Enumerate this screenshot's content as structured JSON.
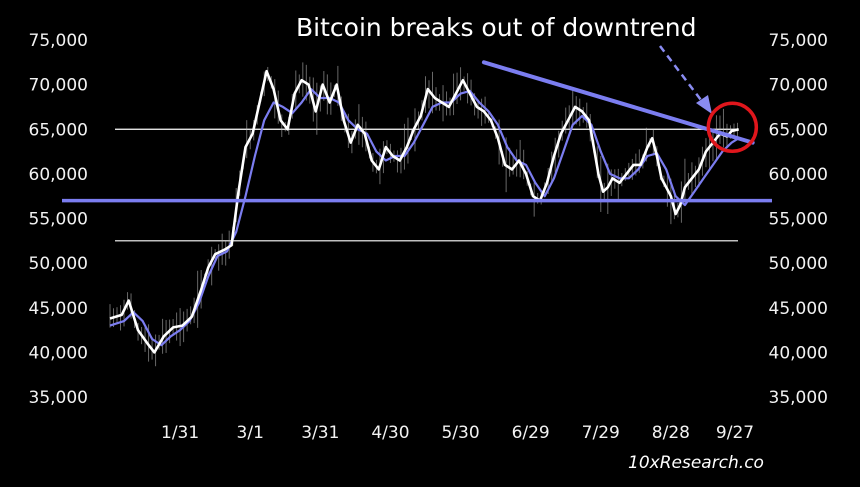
{
  "chart_data": {
    "type": "line",
    "title": "Bitcoin breaks out of downtrend",
    "watermark": "10xResearch.co",
    "xlabel": "",
    "ylabel": "",
    "x_range": [
      0,
      270
    ],
    "ylim": [
      35000,
      75000
    ],
    "y_ticks": [
      35000,
      40000,
      45000,
      50000,
      55000,
      60000,
      65000,
      70000,
      75000
    ],
    "y_tick_labels": [
      "35,000",
      "40,000",
      "45,000",
      "50,000",
      "55,000",
      "60,000",
      "65,000",
      "70,000",
      "75,000"
    ],
    "x_ticks": [
      {
        "x": 30,
        "label": "1/31"
      },
      {
        "x": 60,
        "label": "3/1"
      },
      {
        "x": 90,
        "label": "3/31"
      },
      {
        "x": 120,
        "label": "4/30"
      },
      {
        "x": 150,
        "label": "5/30"
      },
      {
        "x": 180,
        "label": "6/29"
      },
      {
        "x": 210,
        "label": "7/29"
      },
      {
        "x": 240,
        "label": "8/28"
      },
      {
        "x": 270,
        "label": "9/27"
      }
    ],
    "price_series": {
      "color": "#ffffff",
      "points": [
        [
          0,
          43800
        ],
        [
          5,
          44200
        ],
        [
          8,
          45800
        ],
        [
          12,
          42500
        ],
        [
          16,
          41000
        ],
        [
          19,
          40000
        ],
        [
          23,
          41800
        ],
        [
          27,
          42800
        ],
        [
          31,
          43000
        ],
        [
          35,
          44000
        ],
        [
          39,
          47000
        ],
        [
          42,
          49500
        ],
        [
          45,
          51000
        ],
        [
          49,
          51500
        ],
        [
          52,
          52000
        ],
        [
          55,
          58000
        ],
        [
          58,
          63000
        ],
        [
          61,
          64500
        ],
        [
          64,
          68000
        ],
        [
          67,
          71500
        ],
        [
          70,
          69500
        ],
        [
          73,
          66000
        ],
        [
          76,
          65000
        ],
        [
          79,
          69000
        ],
        [
          82,
          70500
        ],
        [
          85,
          70000
        ],
        [
          88,
          67000
        ],
        [
          91,
          70000
        ],
        [
          94,
          68000
        ],
        [
          97,
          70000
        ],
        [
          100,
          66000
        ],
        [
          103,
          63500
        ],
        [
          106,
          65500
        ],
        [
          109,
          64500
        ],
        [
          112,
          61500
        ],
        [
          115,
          60500
        ],
        [
          118,
          63000
        ],
        [
          121,
          62000
        ],
        [
          124,
          61500
        ],
        [
          127,
          63000
        ],
        [
          130,
          65000
        ],
        [
          133,
          66500
        ],
        [
          136,
          69500
        ],
        [
          139,
          68500
        ],
        [
          142,
          68000
        ],
        [
          145,
          67500
        ],
        [
          148,
          69000
        ],
        [
          151,
          70500
        ],
        [
          154,
          69000
        ],
        [
          157,
          67500
        ],
        [
          160,
          67000
        ],
        [
          163,
          66000
        ],
        [
          166,
          64000
        ],
        [
          169,
          61000
        ],
        [
          172,
          60500
        ],
        [
          175,
          61500
        ],
        [
          178,
          60000
        ],
        [
          181,
          57500
        ],
        [
          184,
          57000
        ],
        [
          187,
          59000
        ],
        [
          190,
          62000
        ],
        [
          193,
          64500
        ],
        [
          196,
          66000
        ],
        [
          199,
          67500
        ],
        [
          202,
          67000
        ],
        [
          205,
          66000
        ],
        [
          207,
          63000
        ],
        [
          209,
          60000
        ],
        [
          211,
          58000
        ],
        [
          213,
          58500
        ],
        [
          215,
          59500
        ],
        [
          218,
          59000
        ],
        [
          221,
          60000
        ],
        [
          224,
          61000
        ],
        [
          227,
          61000
        ],
        [
          230,
          63000
        ],
        [
          232,
          64000
        ],
        [
          234,
          62000
        ],
        [
          236,
          59500
        ],
        [
          238,
          58500
        ],
        [
          240,
          57500
        ],
        [
          242,
          55500
        ],
        [
          244,
          56500
        ],
        [
          246,
          58500
        ],
        [
          249,
          59500
        ],
        [
          252,
          60500
        ],
        [
          255,
          62500
        ],
        [
          258,
          63500
        ],
        [
          261,
          64500
        ],
        [
          264,
          64200
        ],
        [
          266,
          64800
        ],
        [
          269,
          65000
        ]
      ]
    },
    "moving_average_series": {
      "color": "#7b7df0",
      "points": [
        [
          0,
          43000
        ],
        [
          6,
          43500
        ],
        [
          10,
          44500
        ],
        [
          14,
          43500
        ],
        [
          18,
          41500
        ],
        [
          22,
          40800
        ],
        [
          26,
          41800
        ],
        [
          30,
          42500
        ],
        [
          34,
          43500
        ],
        [
          38,
          45500
        ],
        [
          42,
          48500
        ],
        [
          46,
          50800
        ],
        [
          50,
          51300
        ],
        [
          54,
          53500
        ],
        [
          58,
          57500
        ],
        [
          62,
          62000
        ],
        [
          66,
          66000
        ],
        [
          70,
          68000
        ],
        [
          74,
          67500
        ],
        [
          78,
          66800
        ],
        [
          82,
          68000
        ],
        [
          86,
          69500
        ],
        [
          90,
          68500
        ],
        [
          94,
          68500
        ],
        [
          98,
          68000
        ],
        [
          102,
          66000
        ],
        [
          106,
          65000
        ],
        [
          110,
          64500
        ],
        [
          114,
          62500
        ],
        [
          118,
          61500
        ],
        [
          122,
          62000
        ],
        [
          126,
          62000
        ],
        [
          130,
          63500
        ],
        [
          134,
          65500
        ],
        [
          138,
          67500
        ],
        [
          142,
          68000
        ],
        [
          146,
          68000
        ],
        [
          150,
          69000
        ],
        [
          154,
          69300
        ],
        [
          158,
          68000
        ],
        [
          162,
          67000
        ],
        [
          166,
          65500
        ],
        [
          170,
          63000
        ],
        [
          174,
          61500
        ],
        [
          178,
          61000
        ],
        [
          182,
          59000
        ],
        [
          186,
          57500
        ],
        [
          190,
          59500
        ],
        [
          194,
          62500
        ],
        [
          198,
          65500
        ],
        [
          202,
          66500
        ],
        [
          206,
          65500
        ],
        [
          210,
          62500
        ],
        [
          214,
          60000
        ],
        [
          218,
          59500
        ],
        [
          222,
          59500
        ],
        [
          226,
          60500
        ],
        [
          230,
          62000
        ],
        [
          234,
          62300
        ],
        [
          238,
          60500
        ],
        [
          242,
          57500
        ],
        [
          246,
          56500
        ],
        [
          250,
          58000
        ],
        [
          254,
          59500
        ],
        [
          258,
          61000
        ],
        [
          262,
          62500
        ],
        [
          266,
          63500
        ],
        [
          269,
          64000
        ]
      ]
    },
    "annotations": {
      "downtrend_line": {
        "x": [
          160,
          275
        ],
        "y": [
          72500,
          63500
        ],
        "color": "#7b7df0"
      },
      "support_line_thick": {
        "y": 57000,
        "color": "#7b7df0"
      },
      "horizontal_line_upper": {
        "y": 65000,
        "color": "#ffffff"
      },
      "horizontal_line_lower": {
        "y": 52500,
        "color": "#ffffff"
      },
      "breakout_circle": {
        "x": 268,
        "y": 65000,
        "color": "#e0161c"
      },
      "arrow_color": "#8a8cf2"
    }
  }
}
